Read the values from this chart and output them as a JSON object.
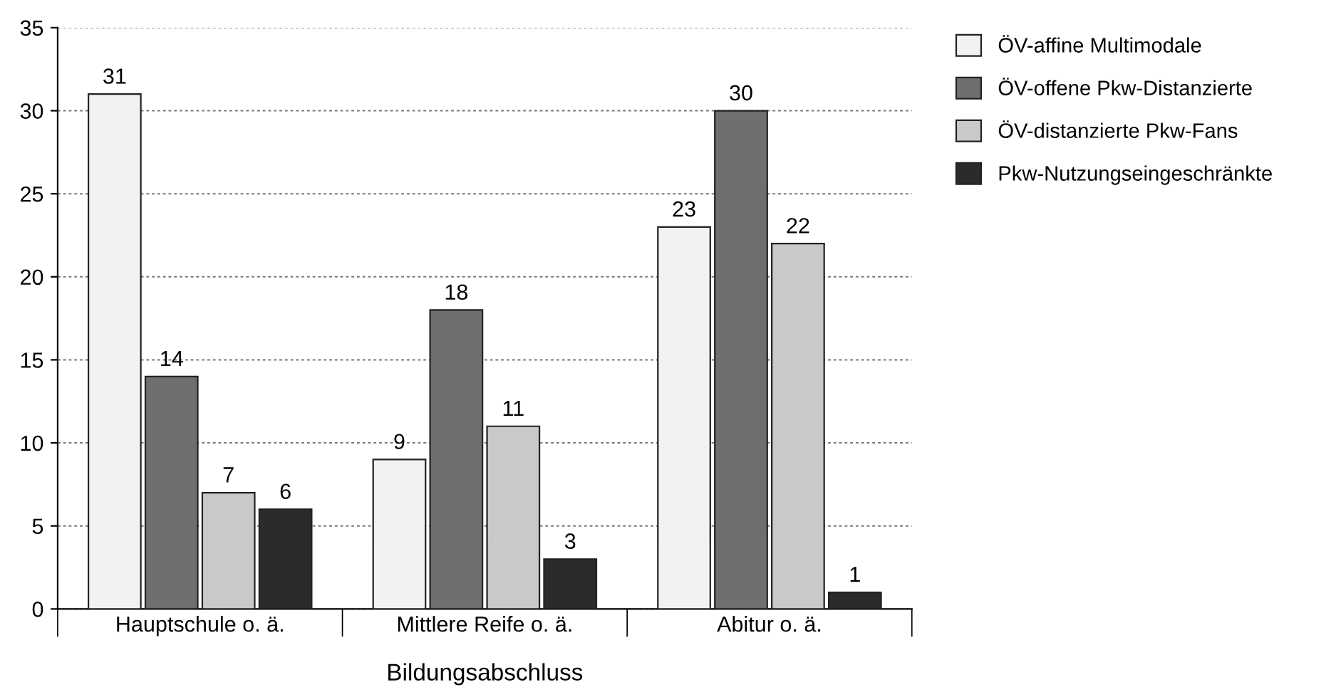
{
  "chart_data": {
    "type": "bar",
    "xlabel": "Bildungsabschluss",
    "categories": [
      "Hauptschule o. ä.",
      "Mittlere Reife o. ä.",
      "Abitur o. ä."
    ],
    "series": [
      {
        "name": "ÖV-affine Multimodale",
        "color": "#f2f2f2",
        "values": [
          31,
          9,
          23
        ]
      },
      {
        "name": "ÖV-offene Pkw-Distanzierte",
        "color": "#6f6f6f",
        "values": [
          14,
          18,
          30
        ]
      },
      {
        "name": "ÖV-distanzierte Pkw-Fans",
        "color": "#c9c9c9",
        "values": [
          7,
          11,
          22
        ]
      },
      {
        "name": "Pkw-Nutzungseingeschränkte",
        "color": "#2b2b2b",
        "values": [
          6,
          3,
          1
        ]
      }
    ],
    "ylim": [
      0,
      35
    ],
    "yticks": [
      0,
      5,
      10,
      15,
      20,
      25,
      30,
      35
    ],
    "grid": "y",
    "legend": "top right",
    "data_labels": true
  }
}
